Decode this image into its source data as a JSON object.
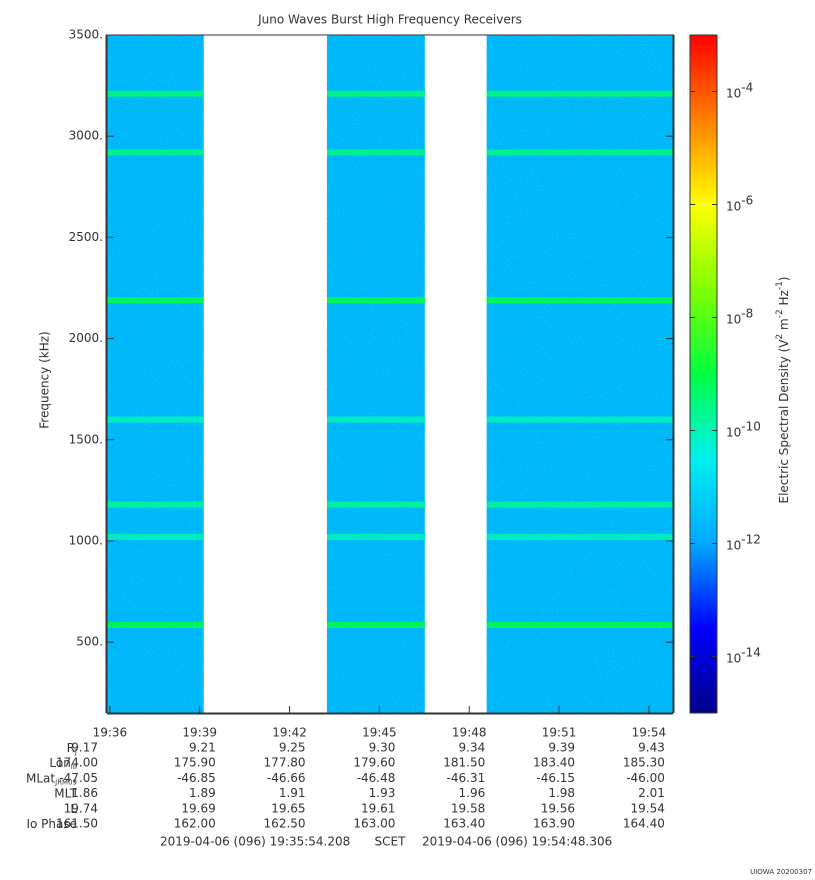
{
  "chart_data": {
    "type": "spectrogram",
    "title": "Juno Waves Burst High Frequency Receivers",
    "y_label": "Frequency (kHz)",
    "colorbar_label": [
      {
        "text": "Electric Spectral Density (V"
      },
      {
        "text": "2",
        "sup": true
      },
      {
        "text": " m"
      },
      {
        "text": "-2",
        "sup": true
      },
      {
        "text": " Hz"
      },
      {
        "text": "-1",
        "sup": true
      },
      {
        "text": ")"
      }
    ],
    "xlim": [
      "19:35:54.208",
      "19:54:48.306"
    ],
    "xticks": [
      "19:36",
      "19:39",
      "19:42",
      "19:45",
      "19:48",
      "19:51",
      "19:54"
    ],
    "ylim": [
      150,
      3500
    ],
    "yticks": [
      {
        "value": 500,
        "label": "500."
      },
      {
        "value": 1000,
        "label": "1000."
      },
      {
        "value": 1500,
        "label": "1500."
      },
      {
        "value": 2000,
        "label": "2000."
      },
      {
        "value": 2500,
        "label": "2500."
      },
      {
        "value": 3000,
        "label": "3000."
      },
      {
        "value": 3500,
        "label": "3500."
      }
    ],
    "zlim": [
      1e-15,
      0.001
    ],
    "zscale": "log",
    "zticks": [
      {
        "value": 0.0001,
        "label": "10",
        "exponent": "-4"
      },
      {
        "value": 1e-06,
        "label": "10",
        "exponent": "-6"
      },
      {
        "value": 1e-08,
        "label": "10",
        "exponent": "-8"
      },
      {
        "value": 1e-10,
        "label": "10",
        "exponent": "-10"
      },
      {
        "value": 1e-12,
        "label": "10",
        "exponent": "-12"
      },
      {
        "value": 1e-14,
        "label": "10",
        "exponent": "-14"
      }
    ],
    "colormap": [
      "#00008b",
      "#0000ff",
      "#00a8ff",
      "#00f0f0",
      "#00ff40",
      "#80ff00",
      "#ffff00",
      "#ff8000",
      "#ff0000"
    ],
    "segments": [
      [
        "19:35:54.208",
        "19:39:08"
      ],
      [
        "19:43:15",
        "19:46:31"
      ],
      [
        "19:48:35",
        "19:54:48.306"
      ]
    ],
    "background": 3e-12,
    "bands": [
      {
        "freq": 585,
        "value": 1e-09
      },
      {
        "freq": 1020,
        "value": 1e-10
      },
      {
        "freq": 1180,
        "value": 2e-10
      },
      {
        "freq": 1600,
        "value": 1e-10
      },
      {
        "freq": 2190,
        "value": 1e-09
      },
      {
        "freq": 2920,
        "value": 3e-10
      },
      {
        "freq": 3210,
        "value": 4e-10
      }
    ],
    "ephemeris": [
      {
        "label": "R",
        "sub": "J",
        "values": [
          "9.17",
          "9.21",
          "9.25",
          "9.30",
          "9.34",
          "9.39",
          "9.43"
        ]
      },
      {
        "label": "Lon",
        "sub": "III",
        "values": [
          "174.00",
          "175.90",
          "177.80",
          "179.60",
          "181.50",
          "183.40",
          "185.30"
        ]
      },
      {
        "label": "MLat",
        "sub": "JRM09",
        "values": [
          "-47.05",
          "-46.85",
          "-46.66",
          "-46.48",
          "-46.31",
          "-46.15",
          "-46.00"
        ]
      },
      {
        "label": "MLT",
        "values": [
          "1.86",
          "1.89",
          "1.91",
          "1.93",
          "1.96",
          "1.98",
          "2.01"
        ]
      },
      {
        "label": "L",
        "values": [
          "19.74",
          "19.69",
          "19.65",
          "19.61",
          "19.58",
          "19.56",
          "19.54"
        ]
      },
      {
        "label": "Io Phase",
        "values": [
          "161.50",
          "162.00",
          "162.50",
          "163.00",
          "163.40",
          "163.90",
          "164.40"
        ]
      }
    ],
    "start": "2019-04-06 (096) 19:35:54.208",
    "time_system": "SCET",
    "end": "2019-04-06 (096) 19:54:48.306",
    "credit": "UIOWA 20200307"
  }
}
